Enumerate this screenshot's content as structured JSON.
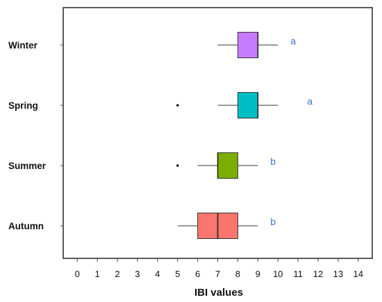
{
  "chart_data": {
    "type": "boxplot",
    "orientation": "horizontal",
    "xlabel": "IBI values",
    "xlim": [
      -0.7,
      14.7
    ],
    "xticks": [
      0,
      1,
      2,
      3,
      4,
      5,
      6,
      7,
      8,
      9,
      10,
      11,
      12,
      13,
      14
    ],
    "grid": false,
    "series": [
      {
        "category": "Winter",
        "color": "#c77cff",
        "whisker_low": 7,
        "q1": 8,
        "median": 9,
        "q3": 9,
        "whisker_high": 10,
        "outliers": [],
        "annotation": "a"
      },
      {
        "category": "Spring",
        "color": "#00bfc4",
        "whisker_low": 7,
        "q1": 8,
        "median": 9,
        "q3": 9,
        "whisker_high": 10,
        "outliers": [
          5
        ],
        "annotation": "a"
      },
      {
        "category": "Summer",
        "color": "#7cae00",
        "whisker_low": 6,
        "q1": 7,
        "median": 7,
        "q3": 8,
        "whisker_high": 9,
        "outliers": [
          5
        ],
        "annotation": "b"
      },
      {
        "category": "Autumn",
        "color": "#f8766d",
        "whisker_low": 5,
        "q1": 6,
        "median": 7,
        "q3": 8,
        "whisker_high": 9,
        "outliers": [],
        "annotation": "b"
      }
    ]
  }
}
